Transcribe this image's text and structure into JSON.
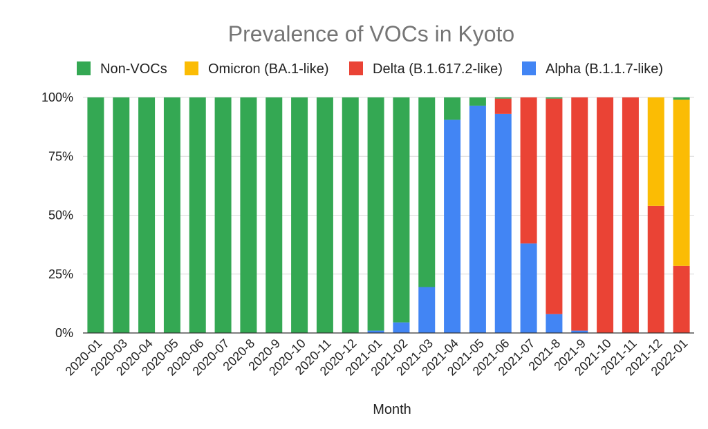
{
  "chart_data": {
    "type": "bar",
    "stacked": true,
    "percent_stacked": true,
    "title": "Prevalence of VOCs in Kyoto",
    "xlabel": "Month",
    "ylabel": "",
    "ylim": [
      0,
      100
    ],
    "y_ticks": [
      "0%",
      "25%",
      "50%",
      "75%",
      "100%"
    ],
    "y_tick_values": [
      0,
      25,
      50,
      75,
      100
    ],
    "grid": true,
    "legend_position": "top",
    "categories": [
      "2020-01",
      "2020-03",
      "2020-04",
      "2020-05",
      "2020-06",
      "2020-07",
      "2020-8",
      "2020-9",
      "2020-10",
      "2020-11",
      "2020-12",
      "2021-01",
      "2021-02",
      "2021-03",
      "2021-04",
      "2021-05",
      "2021-06",
      "2021-07",
      "2021-8",
      "2021-9",
      "2021-10",
      "2021-11",
      "2021-12",
      "2022-01"
    ],
    "series": [
      {
        "name": "Alpha (B.1.1.7-like)",
        "color": "#4285f4",
        "values": [
          0,
          0,
          0,
          0,
          0,
          0,
          0,
          0,
          0,
          0,
          0,
          1,
          4.5,
          19.5,
          90.5,
          96.5,
          93,
          38,
          8,
          1,
          0,
          0,
          0,
          0
        ]
      },
      {
        "name": "Delta (B.1.617.2-like)",
        "color": "#ea4335",
        "values": [
          0,
          0,
          0,
          0,
          0,
          0,
          0,
          0,
          0,
          0,
          0,
          0,
          0,
          0,
          0,
          0,
          6.5,
          62,
          91.5,
          99,
          100,
          100,
          54,
          28.5
        ]
      },
      {
        "name": "Omicron (BA.1-like)",
        "color": "#fbbc04",
        "values": [
          0,
          0,
          0,
          0,
          0,
          0,
          0,
          0,
          0,
          0,
          0,
          0,
          0,
          0,
          0,
          0,
          0,
          0,
          0,
          0,
          0,
          0,
          46,
          70.5
        ]
      },
      {
        "name": "Non-VOCs",
        "color": "#34a853",
        "values": [
          100,
          100,
          100,
          100,
          100,
          100,
          100,
          100,
          100,
          100,
          100,
          99,
          95.5,
          80.5,
          9.5,
          3.5,
          0.5,
          0,
          0.5,
          0,
          0,
          0,
          0,
          1
        ]
      }
    ],
    "legend_order": [
      "Non-VOCs",
      "Omicron (BA.1-like)",
      "Delta (B.1.617.2-like)",
      "Alpha (B.1.1.7-like)"
    ]
  }
}
